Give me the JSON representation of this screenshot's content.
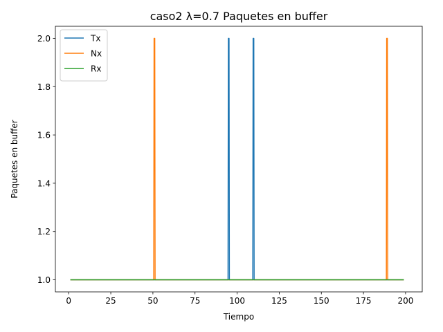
{
  "chart_data": {
    "type": "line",
    "title": "caso2 λ=0.7 Paquetes en buffer",
    "xlabel": "Tiempo",
    "ylabel": "Paquetes en buffer",
    "xlim": [
      -7.9,
      209.9
    ],
    "ylim": [
      0.95,
      2.05
    ],
    "xticks": [
      0,
      25,
      50,
      75,
      100,
      125,
      150,
      175,
      200
    ],
    "xtick_labels": [
      "0",
      "25",
      "50",
      "75",
      "100",
      "125",
      "150",
      "175",
      "200"
    ],
    "yticks": [
      1.0,
      1.2,
      1.4,
      1.6,
      1.8,
      2.0
    ],
    "ytick_labels": [
      "1.0",
      "1.2",
      "1.4",
      "1.6",
      "1.8",
      "2.0"
    ],
    "grid": false,
    "legend": "top-left",
    "series": [
      {
        "name": "Tx",
        "color": "#1f77b4",
        "x": [
          1,
          94.6,
          94.8,
          95.2,
          95.4,
          109.3,
          109.5,
          109.9,
          110.1,
          199
        ],
        "y": [
          1,
          1,
          2,
          2,
          1,
          1,
          2,
          2,
          1,
          1
        ]
      },
      {
        "name": "Nx",
        "color": "#ff7f0e",
        "x": [
          1,
          50.5,
          50.7,
          51.1,
          51.3,
          188.6,
          188.8,
          189.2,
          189.4,
          199
        ],
        "y": [
          1,
          1,
          2,
          2,
          1,
          1,
          2,
          2,
          1,
          1
        ]
      },
      {
        "name": "Rx",
        "color": "#2ca02c",
        "x": [
          1,
          199
        ],
        "y": [
          1,
          1
        ]
      }
    ]
  }
}
